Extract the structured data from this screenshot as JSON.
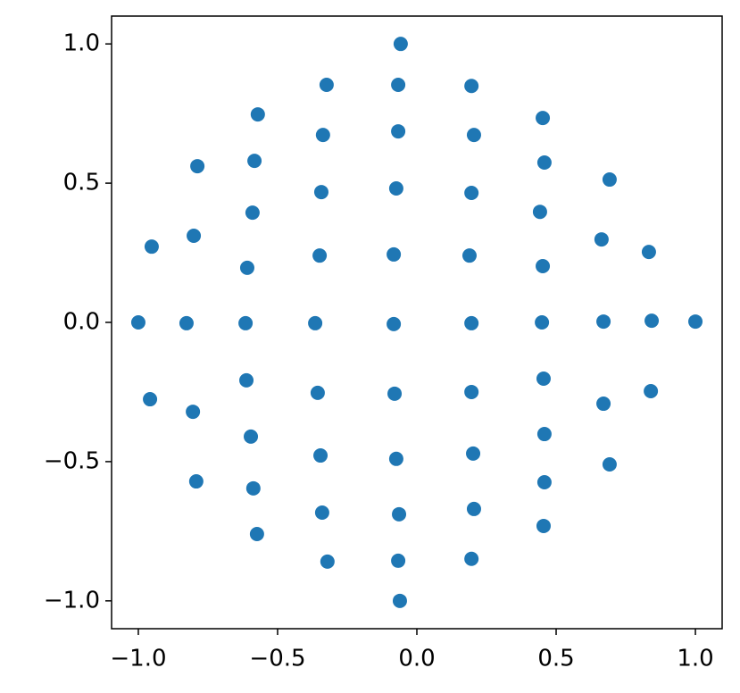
{
  "chart_data": {
    "type": "scatter",
    "color": "#1f77b4",
    "xlim": [
      -1.096,
      1.096
    ],
    "ylim": [
      -1.1,
      1.1
    ],
    "xticks": [
      {
        "value": -1,
        "label": "−1.0"
      },
      {
        "value": -0.5,
        "label": "−0.5"
      },
      {
        "value": 0,
        "label": "0.0"
      },
      {
        "value": 0.5,
        "label": "0.5"
      },
      {
        "value": 1,
        "label": "1.0"
      }
    ],
    "yticks": [
      {
        "value": -1,
        "label": "−1.0"
      },
      {
        "value": -0.5,
        "label": "−0.5"
      },
      {
        "value": 0,
        "label": "0.0"
      },
      {
        "value": 0.5,
        "label": "0.5"
      },
      {
        "value": 1,
        "label": "1.0"
      }
    ],
    "x": [
      -0.058,
      -0.324,
      -0.067,
      0.196,
      -0.571,
      0.452,
      -0.337,
      -0.067,
      0.205,
      -0.788,
      -0.583,
      0.458,
      0.692,
      -0.343,
      -0.074,
      0.196,
      -0.59,
      0.442,
      -0.801,
      -0.952,
      0.663,
      0.833,
      -0.609,
      -0.349,
      -0.083,
      0.189,
      0.452,
      -1.0,
      -0.827,
      -0.615,
      -0.365,
      -0.083,
      0.196,
      0.449,
      0.67,
      0.843,
      1.0,
      -0.958,
      -0.804,
      -0.612,
      -0.356,
      -0.08,
      0.196,
      0.455,
      0.67,
      0.84,
      -0.596,
      0.458,
      -0.346,
      -0.074,
      0.202,
      0.692,
      -0.792,
      -0.587,
      0.458,
      -0.34,
      -0.064,
      0.205,
      0.455,
      -0.574,
      -0.321,
      -0.067,
      0.196,
      -0.061
    ],
    "values": [
      1.0,
      0.853,
      0.853,
      0.849,
      0.747,
      0.734,
      0.673,
      0.686,
      0.673,
      0.561,
      0.58,
      0.574,
      0.513,
      0.468,
      0.481,
      0.465,
      0.394,
      0.397,
      0.311,
      0.272,
      0.298,
      0.253,
      0.196,
      0.24,
      0.244,
      0.24,
      0.202,
      0.0,
      -0.003,
      -0.003,
      -0.003,
      -0.006,
      -0.003,
      0.0,
      0.003,
      0.006,
      0.003,
      -0.276,
      -0.321,
      -0.208,
      -0.253,
      -0.256,
      -0.25,
      -0.202,
      -0.292,
      -0.247,
      -0.41,
      -0.401,
      -0.478,
      -0.49,
      -0.471,
      -0.51,
      -0.571,
      -0.596,
      -0.574,
      -0.683,
      -0.689,
      -0.67,
      -0.731,
      -0.76,
      -0.859,
      -0.856,
      -0.849,
      -1.0
    ]
  }
}
